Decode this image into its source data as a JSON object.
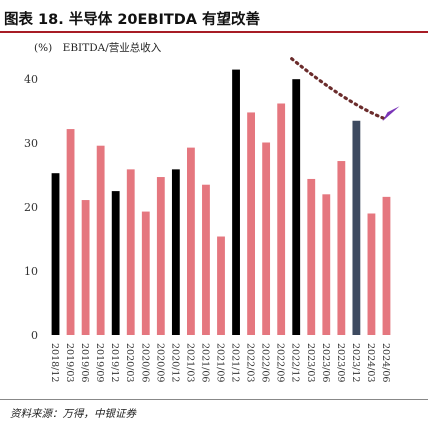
{
  "header": {
    "title": "图表 18. 半导体 20EBITDA 有望改善",
    "unit_label": "(%)　EBITDA/营业总收入"
  },
  "footer": {
    "source": "资料来源：万得，中银证券"
  },
  "colors": {
    "title_rule": "#a71c25",
    "bar_default": "#e5777f",
    "bar_december": "#000000",
    "bar_highlight": "#3d4a60",
    "trend_arrow": "#6b2c2c",
    "arrow_head": "#7a35b8"
  },
  "chart_data": {
    "type": "bar",
    "title": "",
    "xlabel": "",
    "ylabel": "",
    "ylim": [
      0,
      43
    ],
    "yticks": [
      0,
      10,
      20,
      30,
      40
    ],
    "grid": false,
    "categories": [
      "2018/12",
      "2019/03",
      "2019/06",
      "2019/09",
      "2019/12",
      "2020/03",
      "2020/06",
      "2020/09",
      "2020/12",
      "2021/03",
      "2021/06",
      "2021/09",
      "2021/12",
      "2022/03",
      "2022/06",
      "2022/09",
      "2022/12",
      "2023/03",
      "2023/06",
      "2023/09",
      "2023/12",
      "2024/03",
      "2024/06"
    ],
    "values": [
      25.3,
      32.2,
      21.1,
      29.6,
      22.5,
      25.9,
      19.3,
      24.7,
      25.9,
      29.3,
      23.5,
      15.4,
      41.5,
      34.8,
      30.1,
      36.2,
      40.0,
      24.4,
      22.0,
      27.2,
      33.5,
      19.0,
      21.6
    ],
    "bar_kinds": [
      "december",
      "normal",
      "normal",
      "normal",
      "december",
      "normal",
      "normal",
      "normal",
      "december",
      "normal",
      "normal",
      "normal",
      "december",
      "normal",
      "normal",
      "normal",
      "december",
      "normal",
      "normal",
      "normal",
      "highlight",
      "normal",
      "normal"
    ],
    "annotation": "dotted-downtrend-arrow"
  }
}
